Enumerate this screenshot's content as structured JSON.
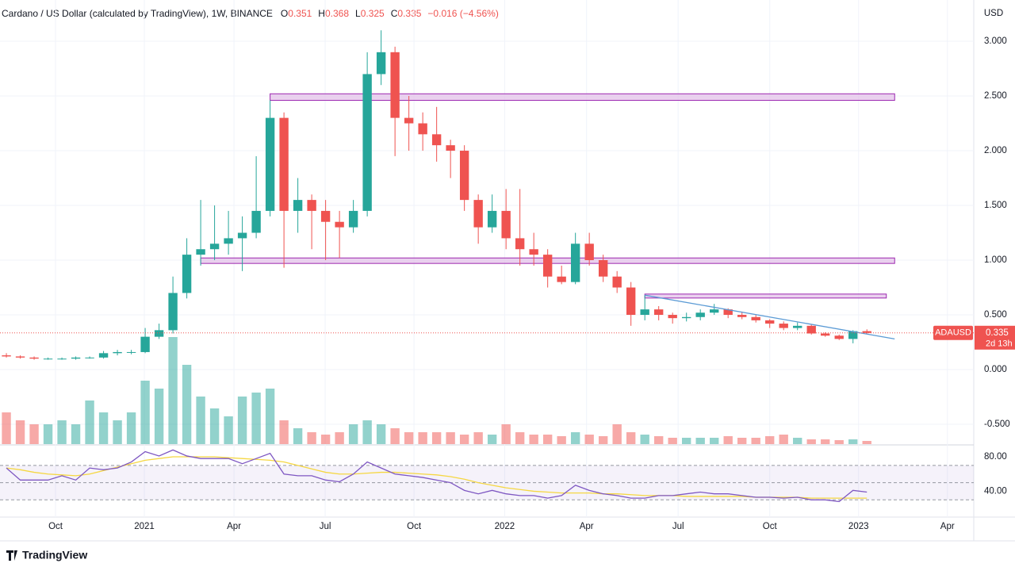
{
  "chart_data": {
    "type": "candlestick",
    "title": "Cardano / US Dollar (calculated by TradingView), 1W, BINANCE",
    "ohlc_letters": [
      "O",
      "H",
      "L",
      "C"
    ],
    "change": "−0.016 (−4.56%)",
    "currency": "USD",
    "symbol": "ADAUSD",
    "countdown": "2d 13h",
    "brand": "TradingView",
    "up_color": "#26a69a",
    "down_color": "#ef5350",
    "candles": [
      [
        0.13,
        0.15,
        0.11,
        0.12
      ],
      [
        0.12,
        0.13,
        0.1,
        0.11
      ],
      [
        0.11,
        0.12,
        0.09,
        0.1
      ],
      [
        0.1,
        0.11,
        0.09,
        0.1
      ],
      [
        0.1,
        0.11,
        0.09,
        0.1
      ],
      [
        0.1,
        0.12,
        0.09,
        0.11
      ],
      [
        0.11,
        0.12,
        0.1,
        0.11
      ],
      [
        0.11,
        0.17,
        0.1,
        0.15
      ],
      [
        0.15,
        0.18,
        0.13,
        0.16
      ],
      [
        0.16,
        0.18,
        0.14,
        0.16
      ],
      [
        0.16,
        0.38,
        0.15,
        0.3
      ],
      [
        0.3,
        0.42,
        0.28,
        0.36
      ],
      [
        0.36,
        0.85,
        0.33,
        0.7
      ],
      [
        0.7,
        1.2,
        0.65,
        1.05
      ],
      [
        1.05,
        1.55,
        0.95,
        1.1
      ],
      [
        1.1,
        1.5,
        1.0,
        1.15
      ],
      [
        1.15,
        1.45,
        1.05,
        1.2
      ],
      [
        1.2,
        1.4,
        0.9,
        1.25
      ],
      [
        1.25,
        1.95,
        1.2,
        1.45
      ],
      [
        1.45,
        2.46,
        1.4,
        2.3
      ],
      [
        2.3,
        2.35,
        0.93,
        1.45
      ],
      [
        1.45,
        1.75,
        1.25,
        1.55
      ],
      [
        1.55,
        1.6,
        1.1,
        1.45
      ],
      [
        1.45,
        1.55,
        1.0,
        1.35
      ],
      [
        1.35,
        1.45,
        1.02,
        1.3
      ],
      [
        1.3,
        1.55,
        1.25,
        1.45
      ],
      [
        1.45,
        2.9,
        1.4,
        2.7
      ],
      [
        2.7,
        3.1,
        2.6,
        2.9
      ],
      [
        2.9,
        2.95,
        1.95,
        2.3
      ],
      [
        2.3,
        2.5,
        2.0,
        2.25
      ],
      [
        2.25,
        2.35,
        2.0,
        2.15
      ],
      [
        2.15,
        2.4,
        1.9,
        2.05
      ],
      [
        2.05,
        2.1,
        1.75,
        2.0
      ],
      [
        2.0,
        2.05,
        1.45,
        1.55
      ],
      [
        1.55,
        1.6,
        1.15,
        1.3
      ],
      [
        1.3,
        1.6,
        1.25,
        1.45
      ],
      [
        1.45,
        1.65,
        1.1,
        1.2
      ],
      [
        1.2,
        1.65,
        0.95,
        1.1
      ],
      [
        1.1,
        1.25,
        0.95,
        1.05
      ],
      [
        1.05,
        1.1,
        0.75,
        0.85
      ],
      [
        0.85,
        0.95,
        0.78,
        0.8
      ],
      [
        0.8,
        1.25,
        0.78,
        1.15
      ],
      [
        1.15,
        1.25,
        0.95,
        1.0
      ],
      [
        1.0,
        1.05,
        0.8,
        0.85
      ],
      [
        0.85,
        0.9,
        0.7,
        0.75
      ],
      [
        0.75,
        0.8,
        0.4,
        0.5
      ],
      [
        0.5,
        0.68,
        0.45,
        0.55
      ],
      [
        0.55,
        0.58,
        0.45,
        0.5
      ],
      [
        0.5,
        0.52,
        0.42,
        0.47
      ],
      [
        0.47,
        0.52,
        0.44,
        0.48
      ],
      [
        0.48,
        0.55,
        0.45,
        0.52
      ],
      [
        0.52,
        0.6,
        0.5,
        0.55
      ],
      [
        0.55,
        0.56,
        0.47,
        0.5
      ],
      [
        0.5,
        0.53,
        0.46,
        0.48
      ],
      [
        0.48,
        0.5,
        0.43,
        0.45
      ],
      [
        0.45,
        0.46,
        0.38,
        0.42
      ],
      [
        0.42,
        0.44,
        0.36,
        0.38
      ],
      [
        0.38,
        0.43,
        0.36,
        0.4
      ],
      [
        0.4,
        0.41,
        0.32,
        0.33
      ],
      [
        0.33,
        0.34,
        0.3,
        0.31
      ],
      [
        0.31,
        0.32,
        0.27,
        0.28
      ],
      [
        0.28,
        0.36,
        0.24,
        0.351
      ],
      [
        0.351,
        0.368,
        0.325,
        0.335
      ]
    ],
    "volume": [
      40,
      30,
      25,
      25,
      30,
      25,
      55,
      40,
      30,
      40,
      80,
      70,
      135,
      100,
      60,
      45,
      35,
      60,
      65,
      70,
      30,
      20,
      15,
      12,
      15,
      25,
      30,
      25,
      20,
      15,
      15,
      15,
      15,
      12,
      15,
      12,
      25,
      15,
      12,
      12,
      10,
      15,
      12,
      10,
      25,
      15,
      12,
      10,
      8,
      8,
      8,
      8,
      10,
      8,
      8,
      10,
      12,
      8,
      6,
      6,
      5,
      6,
      4
    ],
    "xlim": [
      -0.46,
      69.7
    ],
    "xticks": [
      {
        "value": 3.54,
        "label": "Oct"
      },
      {
        "value": 9.94,
        "label": "2021"
      },
      {
        "value": 16.4,
        "label": "Apr"
      },
      {
        "value": 22.97,
        "label": "Jul"
      },
      {
        "value": 29.37,
        "label": "Oct"
      },
      {
        "value": 35.9,
        "label": "2022"
      },
      {
        "value": 41.8,
        "label": "Apr"
      },
      {
        "value": 48.4,
        "label": "Jul"
      },
      {
        "value": 55.0,
        "label": "Oct"
      },
      {
        "value": 61.4,
        "label": "2023"
      },
      {
        "value": 67.8,
        "label": "Apr"
      }
    ],
    "ylim": [
      -0.681,
      3.377
    ],
    "yticks": [
      {
        "value": 3,
        "label": "3.000"
      },
      {
        "value": 2.5,
        "label": "2.500"
      },
      {
        "value": 2,
        "label": "2.000"
      },
      {
        "value": 1.5,
        "label": "1.500"
      },
      {
        "value": 1,
        "label": "1.000"
      },
      {
        "value": 0.5,
        "label": "0.500"
      },
      {
        "value": 0,
        "label": "0.000"
      },
      {
        "value": -0.5,
        "label": "-0.500"
      }
    ],
    "grid": true,
    "zones": [
      {
        "from": 19,
        "to": 64,
        "low": 2.46,
        "high": 2.52
      },
      {
        "from": 14,
        "to": 64,
        "low": 0.97,
        "high": 1.02
      },
      {
        "from": 46,
        "to": 63.4,
        "low": 0.67,
        "high": 0.69
      }
    ],
    "trendline": [
      [
        46,
        0.68
      ],
      [
        64,
        0.28
      ]
    ],
    "rsi": {
      "type": "line",
      "ylim": [
        10,
        92
      ],
      "yticks": [
        {
          "value": 80,
          "label": "80.00"
        },
        {
          "value": 40,
          "label": "40.00"
        }
      ],
      "levels": [
        70,
        50,
        30
      ],
      "series": [
        {
          "color": "#7e57c2",
          "values": [
            67,
            53,
            53,
            53,
            58,
            53,
            67,
            65,
            67,
            74,
            86,
            81,
            88,
            81,
            78,
            78,
            78,
            72,
            78,
            84,
            60,
            58,
            58,
            53,
            51,
            60,
            74,
            67,
            60,
            58,
            56,
            53,
            50,
            41,
            37,
            41,
            37,
            35,
            35,
            32,
            35,
            47,
            41,
            37,
            35,
            32,
            32,
            35,
            35,
            37,
            39,
            37,
            37,
            35,
            33,
            33,
            32,
            33,
            30,
            30,
            28,
            41,
            39
          ]
        },
        {
          "color": "#f5d742",
          "values": [
            67,
            65,
            62,
            60,
            59,
            58,
            60,
            64,
            68,
            72,
            76,
            78,
            80,
            80,
            80,
            80,
            79,
            78,
            77,
            76,
            74,
            70,
            66,
            62,
            60,
            60,
            61,
            62,
            62,
            61,
            60,
            59,
            57,
            54,
            50,
            47,
            44,
            42,
            40,
            39,
            38,
            38,
            38,
            37,
            37,
            36,
            35,
            35,
            35,
            34,
            34,
            34,
            34,
            34,
            33,
            33,
            33,
            33,
            32,
            32,
            32,
            32,
            32
          ]
        }
      ]
    }
  }
}
